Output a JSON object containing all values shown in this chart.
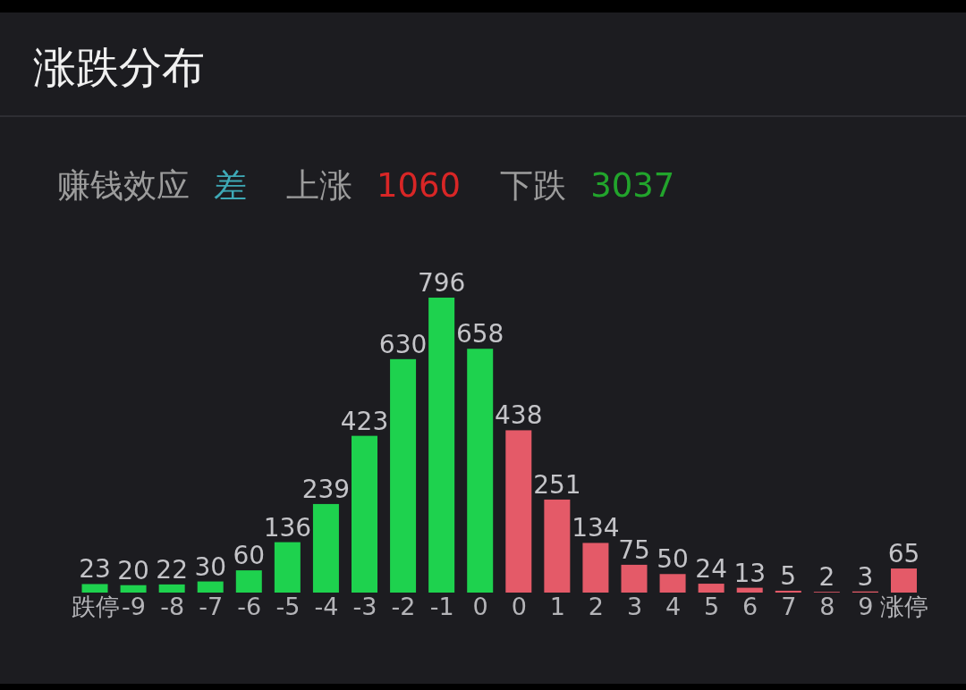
{
  "chart_data": {
    "type": "bar",
    "title": "涨跌分布",
    "annotations": [
      "赚钱效应",
      "差",
      "上涨",
      "1060",
      "下跌",
      "3037"
    ],
    "categories": [
      "跌停",
      "-9",
      "-8",
      "-7",
      "-6",
      "-5",
      "-4",
      "-3",
      "-2",
      "-1",
      "0",
      "0",
      "1",
      "2",
      "3",
      "4",
      "5",
      "6",
      "7",
      "8",
      "9",
      "涨停"
    ],
    "values": [
      23,
      20,
      22,
      30,
      60,
      136,
      239,
      423,
      630,
      796,
      658,
      438,
      251,
      134,
      75,
      50,
      24,
      13,
      5,
      2,
      3,
      65
    ],
    "colors": [
      "#1ed24e",
      "#1ed24e",
      "#1ed24e",
      "#1ed24e",
      "#1ed24e",
      "#1ed24e",
      "#1ed24e",
      "#1ed24e",
      "#1ed24e",
      "#1ed24e",
      "#1ed24e",
      "#e45a68",
      "#e45a68",
      "#e45a68",
      "#e45a68",
      "#e45a68",
      "#e45a68",
      "#e45a68",
      "#e45a68",
      "#e45a68",
      "#e45a68",
      "#e45a68"
    ],
    "data_labels": true
  }
}
